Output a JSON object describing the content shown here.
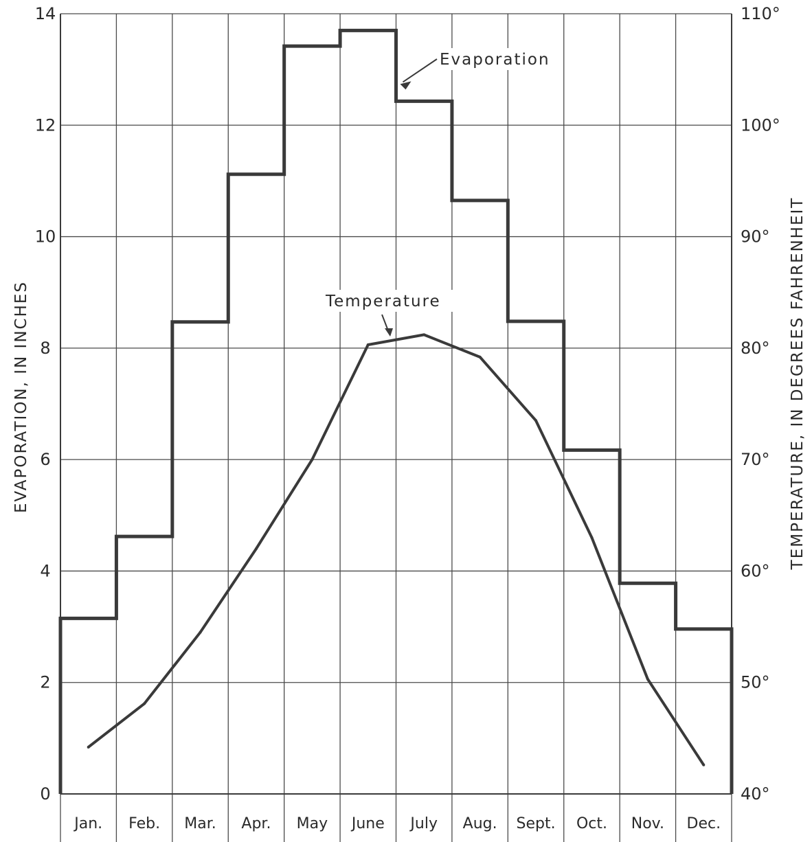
{
  "chart_data": {
    "type": "line",
    "categories": [
      "Jan.",
      "Feb.",
      "Mar.",
      "Apr.",
      "May",
      "June",
      "July",
      "Aug.",
      "Sept.",
      "Oct.",
      "Nov.",
      "Dec."
    ],
    "series": [
      {
        "name": "Evaporation",
        "style": "step",
        "axis": "left",
        "values": [
          3.15,
          4.62,
          8.47,
          11.12,
          13.42,
          13.7,
          12.43,
          10.65,
          8.48,
          6.17,
          3.78,
          2.96
        ]
      },
      {
        "name": "Temperature",
        "style": "line",
        "axis": "right",
        "values": [
          44.2,
          48.1,
          54.5,
          62,
          70,
          80.3,
          81.2,
          79.2,
          73.5,
          63,
          50.3,
          42.6
        ]
      }
    ],
    "ylabel": "EVAPORATION, IN INCHES",
    "ylabel_right": "TEMPERATURE, IN DEGREES FAHRENHEIT",
    "ylim": [
      0,
      14
    ],
    "ylim_right": [
      40,
      110
    ],
    "yticks": [
      0,
      2,
      4,
      6,
      8,
      10,
      12,
      14
    ],
    "yticks_right": [
      "40°",
      "50°",
      "60°",
      "70°",
      "80°",
      "90°",
      "100°",
      "110°"
    ],
    "grid": true,
    "annotations": [
      "Evaporation",
      "Temperature"
    ],
    "colors": {
      "ink": "#3a3a3a",
      "grid": "#4a4a4a"
    }
  }
}
